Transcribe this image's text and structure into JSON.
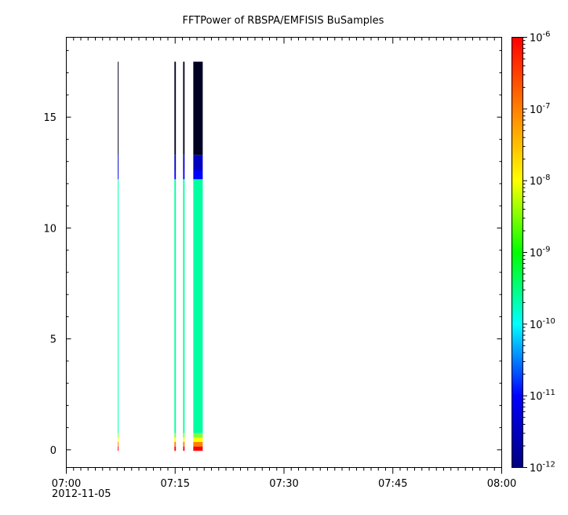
{
  "chart_data": {
    "type": "heatmap",
    "title": "FFTPower of RBSPA/EMFISIS  BuSamples",
    "xlabel": "",
    "ylabel": "",
    "x_range": [
      "07:00",
      "08:00"
    ],
    "x_ticks": [
      {
        "time": "07:00",
        "label": "07:00"
      },
      {
        "time": "07:15",
        "label": "07:15"
      },
      {
        "time": "07:30",
        "label": "07:30"
      },
      {
        "time": "07:45",
        "label": "07:45"
      },
      {
        "time": "08:00",
        "label": "08:00"
      }
    ],
    "x_date_label": "2012-11-05",
    "ylim": [
      -0.8,
      18.6
    ],
    "y_ticks": [
      {
        "value": 0,
        "label": "0"
      },
      {
        "value": 5,
        "label": "5"
      },
      {
        "value": 10,
        "label": "10"
      },
      {
        "value": 15,
        "label": "15"
      }
    ],
    "colorbar": {
      "scale": "log",
      "range": [
        1e-12,
        1e-06
      ],
      "colormap": [
        "#000080",
        "#0000ff",
        "#00ffff",
        "#00ff00",
        "#ffff00",
        "#ff8000",
        "#ff0000"
      ],
      "ticks": [
        {
          "value": 1e-06,
          "base": "10",
          "exp": "-6"
        },
        {
          "value": 1e-07,
          "base": "10",
          "exp": "-7"
        },
        {
          "value": 1e-08,
          "base": "10",
          "exp": "-8"
        },
        {
          "value": 1e-09,
          "base": "10",
          "exp": "-9"
        },
        {
          "value": 1e-10,
          "base": "10",
          "exp": "-10"
        },
        {
          "value": 1e-11,
          "base": "10",
          "exp": "-11"
        },
        {
          "value": 1e-12,
          "base": "10",
          "exp": "-12"
        }
      ]
    },
    "grid": false,
    "data_columns": [
      {
        "t_start": "07:07:06",
        "t_end": "07:07:12"
      },
      {
        "t_start": "07:14:54",
        "t_end": "07:15:06"
      },
      {
        "t_start": "07:16:06",
        "t_end": "07:16:18"
      },
      {
        "t_start": "07:17:30",
        "t_end": "07:18:48"
      }
    ],
    "spectrum_bands": [
      {
        "y_from": -0.05,
        "y_to": 0.15,
        "color": "#ff0000"
      },
      {
        "y_from": 0.15,
        "y_to": 0.35,
        "color": "#ff8000"
      },
      {
        "y_from": 0.35,
        "y_to": 0.55,
        "color": "#ffff00"
      },
      {
        "y_from": 0.55,
        "y_to": 0.75,
        "color": "#80ff40"
      },
      {
        "y_from": 0.75,
        "y_to": 12.2,
        "color": "#00ffa0"
      },
      {
        "y_from": 12.2,
        "y_to": 12.6,
        "color": "#0000ff"
      },
      {
        "y_from": 12.6,
        "y_to": 13.3,
        "color": "#0000c0"
      },
      {
        "y_from": 13.3,
        "y_to": 17.5,
        "color": "#000020"
      }
    ]
  }
}
